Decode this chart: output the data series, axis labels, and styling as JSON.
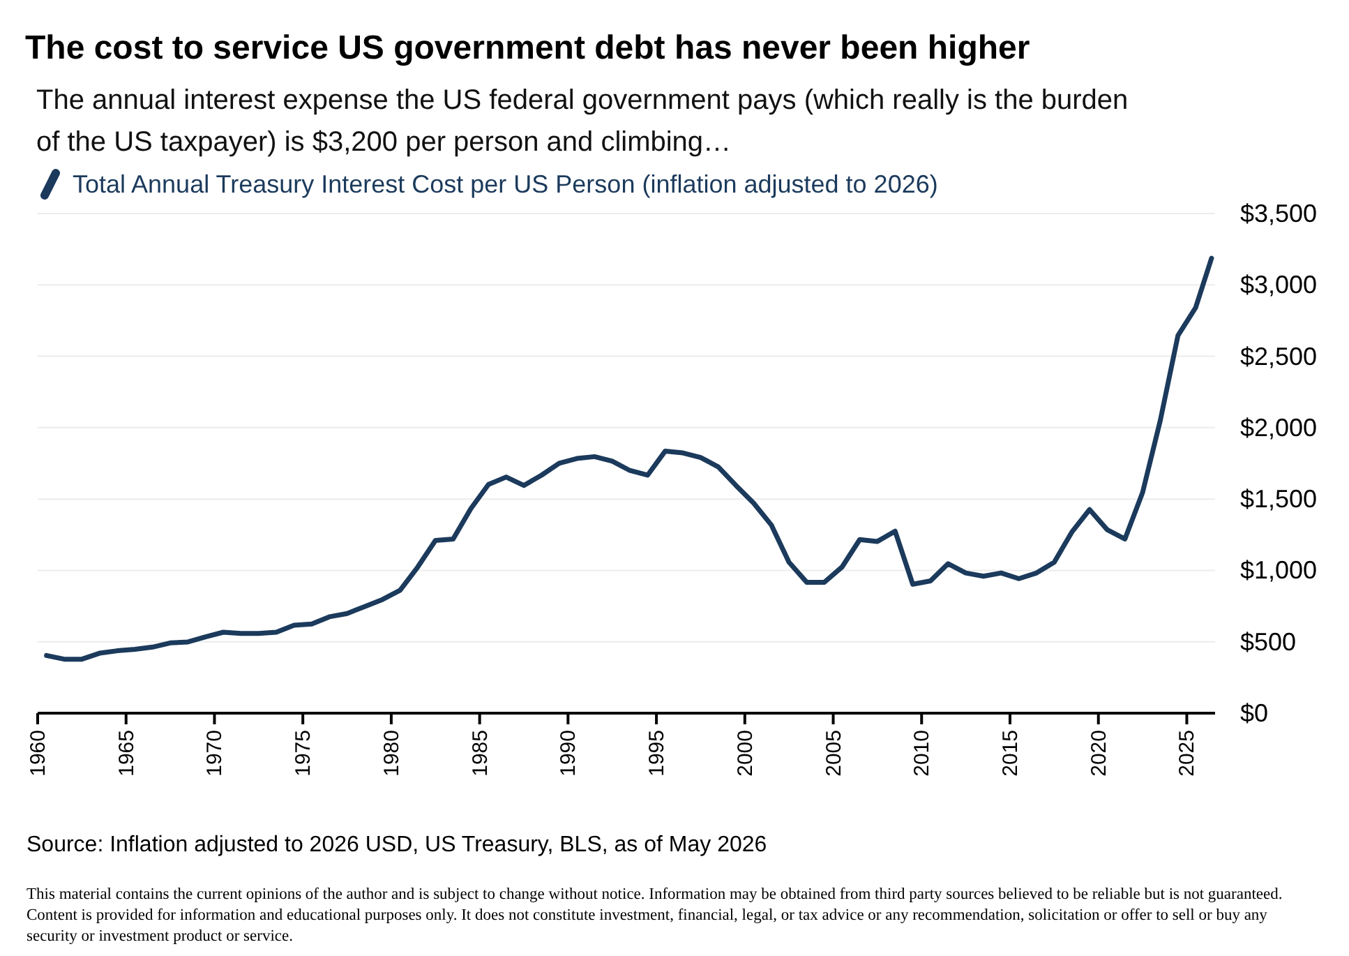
{
  "chart_data": {
    "type": "line",
    "title": "The cost to service US government debt has never been higher",
    "subtitle": "The annual interest expense the US federal government pays (which really is the burden of the US taxpayer) is $3,200 per person and climbing…",
    "x": [
      1960.5,
      1961.5,
      1962.5,
      1963.5,
      1964.5,
      1965.5,
      1966.5,
      1967.5,
      1968.5,
      1969.5,
      1970.5,
      1971.5,
      1972.5,
      1973.5,
      1974.5,
      1975.5,
      1976.5,
      1977.5,
      1978.5,
      1979.5,
      1980.5,
      1981.5,
      1982.5,
      1983.5,
      1984.5,
      1985.5,
      1986.5,
      1987.5,
      1988.5,
      1989.5,
      1990.5,
      1991.5,
      1992.5,
      1993.5,
      1994.5,
      1995.5,
      1996.5,
      1997.5,
      1998.5,
      1999.5,
      2000.5,
      2001.5,
      2002.5,
      2003.5,
      2004.5,
      2005.5,
      2006.5,
      2007.5,
      2008.5,
      2009.5,
      2010.5,
      2011.5,
      2012.5,
      2013.5,
      2014.5,
      2015.5,
      2016.5,
      2017.5,
      2018.5,
      2019.5,
      2020.5,
      2021.5,
      2022.5,
      2023.5,
      2024.5,
      2025.5,
      2026.4
    ],
    "series": [
      {
        "name": "Total Annual Treasury Interest Cost per US Person (inflation adjusted to 2026)",
        "color": "#1b3a5c",
        "values": [
          404,
          378,
          378,
          420,
          437,
          447,
          463,
          492,
          499,
          535,
          567,
          558,
          558,
          567,
          616,
          624,
          675,
          698,
          747,
          796,
          861,
          1024,
          1210,
          1220,
          1432,
          1602,
          1654,
          1595,
          1667,
          1751,
          1784,
          1797,
          1765,
          1700,
          1667,
          1836,
          1823,
          1791,
          1725,
          1595,
          1471,
          1318,
          1057,
          917,
          917,
          1024,
          1216,
          1203,
          1275,
          903,
          926,
          1047,
          982,
          959,
          982,
          942,
          982,
          1057,
          1269,
          1426,
          1285,
          1220,
          1546,
          2050,
          2645,
          2841,
          3187
        ]
      }
    ],
    "xlim": [
      1960,
      2026.6
    ],
    "xticks": [
      1960,
      1965,
      1970,
      1975,
      1980,
      1985,
      1990,
      1995,
      2000,
      2005,
      2010,
      2015,
      2020,
      2025
    ],
    "ylim": [
      0,
      3500
    ],
    "yticks": [
      {
        "value": 0,
        "label": "$0"
      },
      {
        "value": 500,
        "label": "$500"
      },
      {
        "value": 1000,
        "label": "$1,000"
      },
      {
        "value": 1500,
        "label": "$1,500"
      },
      {
        "value": 2000,
        "label": "$2,000"
      },
      {
        "value": 2500,
        "label": "$2,500"
      },
      {
        "value": 3000,
        "label": "$3,000"
      },
      {
        "value": 3500,
        "label": "$3,500"
      }
    ],
    "grid": "y",
    "legend": "top left",
    "line_style": "solid",
    "annotations": [
      "Source:  Inflation adjusted to 2026 USD, US Treasury, BLS, as of May 2026",
      "This material contains the current opinions of the author and is subject to change without notice.  Information may be obtained from third party sources believed to be reliable but is not guaranteed.  Content is provided for information and educational purposes only. It does not constitute investment, financial, legal, or tax advice or any recommendation, solicitation or offer to sell or buy any security or investment product or service."
    ]
  }
}
